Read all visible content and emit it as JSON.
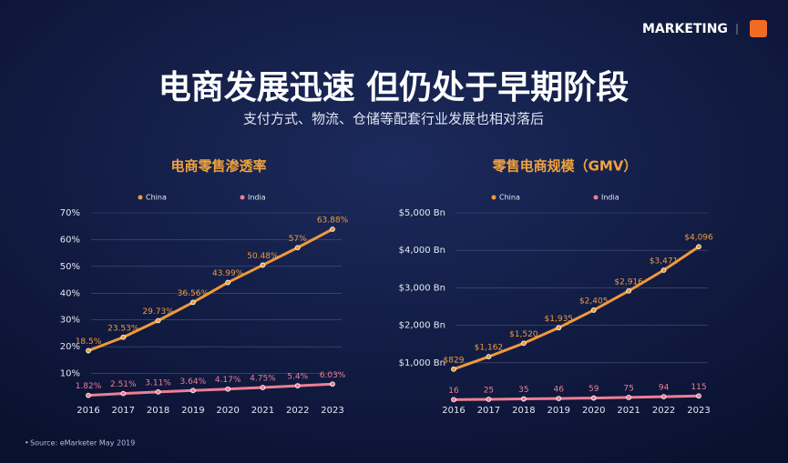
{
  "header": {
    "logo": "MARKETING",
    "title": "电商发展迅速  但仍处于早期阶段",
    "subtitle": "支付方式、物流、仓储等配套行业发展也相对落后"
  },
  "chart_data": [
    {
      "type": "line",
      "title": "电商零售渗透率",
      "categories": [
        "2016",
        "2017",
        "2018",
        "2019",
        "2020",
        "2021",
        "2022",
        "2023"
      ],
      "series": [
        {
          "name": "China",
          "color": "#ee9a3c",
          "values": [
            18.5,
            23.53,
            29.73,
            36.56,
            43.99,
            50.48,
            57,
            63.88
          ],
          "value_labels": [
            "18.5%",
            "23.53%",
            "29.73%",
            "36.56%",
            "43.99%",
            "50.48%",
            "57%",
            "63.88%"
          ]
        },
        {
          "name": "India",
          "color": "#ec7f94",
          "values": [
            1.82,
            2.51,
            3.11,
            3.64,
            4.17,
            4.75,
            5.4,
            6.03
          ],
          "value_labels": [
            "1.82%",
            "2.51%",
            "3.11%",
            "3.64%",
            "4.17%",
            "4.75%",
            "5.4%",
            "6.03%"
          ]
        }
      ],
      "ylim": [
        0,
        70
      ],
      "yticks": [
        {
          "value": 10,
          "label": "10%"
        },
        {
          "value": 20,
          "label": "20%"
        },
        {
          "value": 30,
          "label": "30%"
        },
        {
          "value": 40,
          "label": "40%"
        },
        {
          "value": 50,
          "label": "50%"
        },
        {
          "value": 60,
          "label": "60%"
        },
        {
          "value": 70,
          "label": "70%"
        }
      ],
      "grid": true,
      "legend": "top"
    },
    {
      "type": "line",
      "title": "零售电商规模（GMV）",
      "categories": [
        "2016",
        "2017",
        "2018",
        "2019",
        "2020",
        "2021",
        "2022",
        "2023"
      ],
      "series": [
        {
          "name": "China",
          "color": "#ee9a3c",
          "values": [
            829,
            1162,
            1520,
            1935,
            2405,
            2916,
            3471,
            4096
          ],
          "value_labels": [
            "$829",
            "$1,162",
            "$1,520",
            "$1,935",
            "$2,405",
            "$2,916",
            "$3,471",
            "$4,096"
          ]
        },
        {
          "name": "India",
          "color": "#ec7f94",
          "values": [
            16,
            25,
            35,
            46,
            59,
            75,
            94,
            115
          ]
        }
      ],
      "ylim": [
        0,
        5000
      ],
      "yticks": [
        {
          "value": 1000,
          "label": "$1,000 Bn"
        },
        {
          "value": 2000,
          "label": "$2,000 Bn"
        },
        {
          "value": 3000,
          "label": "$3,000 Bn"
        },
        {
          "value": 4000,
          "label": "$4,000 Bn"
        },
        {
          "value": 5000,
          "label": "$5,000 Bn"
        }
      ],
      "grid": true,
      "legend": "top"
    }
  ],
  "footer": {
    "source": "Source: eMarketer May 2019"
  }
}
